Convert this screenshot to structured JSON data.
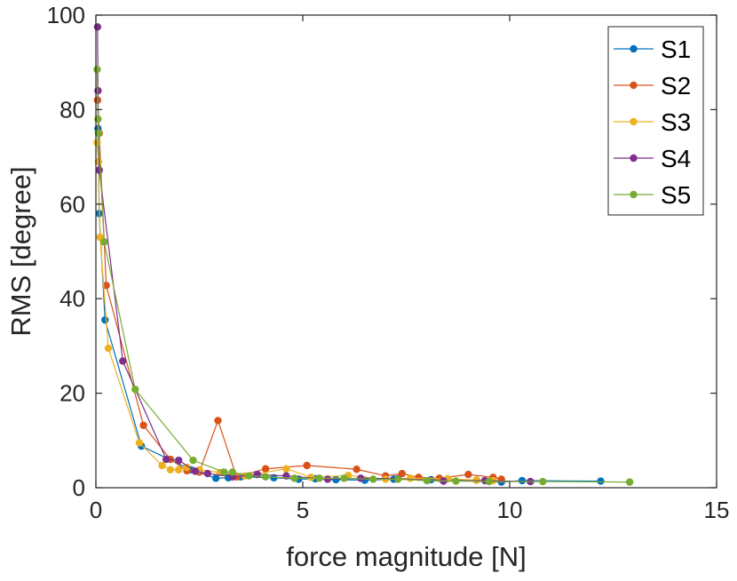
{
  "chart_data": {
    "type": "line",
    "title": "",
    "xlabel": "force magnitude [N]",
    "ylabel": "RMS [degree]",
    "xlim": [
      0,
      15
    ],
    "ylim": [
      0,
      100
    ],
    "xticks": [
      0,
      5,
      10,
      15
    ],
    "yticks": [
      0,
      20,
      40,
      60,
      80,
      100
    ],
    "xtick_labels": [
      "0",
      "5",
      "10",
      "15"
    ],
    "ytick_labels": [
      "0",
      "20",
      "40",
      "60",
      "80",
      "100"
    ],
    "grid": false,
    "legend_position": "top-right",
    "series": [
      {
        "name": "S1",
        "color": "#0072BD",
        "points": [
          [
            0.05,
            76
          ],
          [
            0.08,
            58
          ],
          [
            0.22,
            35.5
          ],
          [
            1.1,
            8.8
          ],
          [
            2.3,
            3.8
          ],
          [
            2.9,
            2.0
          ],
          [
            3.2,
            2.1
          ],
          [
            3.5,
            2.3
          ],
          [
            4.3,
            2.1
          ],
          [
            4.9,
            1.8
          ],
          [
            5.3,
            1.9
          ],
          [
            5.8,
            1.7
          ],
          [
            6.5,
            1.6
          ],
          [
            7.2,
            1.8
          ],
          [
            8.1,
            1.7
          ],
          [
            9.2,
            1.6
          ],
          [
            9.8,
            1.2
          ],
          [
            10.3,
            1.5
          ],
          [
            12.2,
            1.4
          ]
        ]
      },
      {
        "name": "S2",
        "color": "#D95319",
        "points": [
          [
            0.04,
            82
          ],
          [
            0.08,
            75
          ],
          [
            0.25,
            42.8
          ],
          [
            1.15,
            13.2
          ],
          [
            1.8,
            6
          ],
          [
            2.2,
            3.6
          ],
          [
            2.5,
            3.3
          ],
          [
            2.95,
            14.2
          ],
          [
            3.4,
            2.3
          ],
          [
            4.1,
            4
          ],
          [
            5.1,
            4.7
          ],
          [
            6.3,
            3.9
          ],
          [
            7,
            2.5
          ],
          [
            7.4,
            3
          ],
          [
            7.8,
            2.2
          ],
          [
            8.3,
            2
          ],
          [
            9.0,
            2.8
          ],
          [
            9.6,
            2.2
          ],
          [
            9.8,
            1.8
          ]
        ]
      },
      {
        "name": "S3",
        "color": "#EDB120",
        "points": [
          [
            0.03,
            73
          ],
          [
            0.06,
            69
          ],
          [
            0.1,
            53
          ],
          [
            0.3,
            29.5
          ],
          [
            1.05,
            9.5
          ],
          [
            1.6,
            4.7
          ],
          [
            1.8,
            3.8
          ],
          [
            2.0,
            3.8
          ],
          [
            2.2,
            4.3
          ],
          [
            2.5,
            3.8
          ],
          [
            3.0,
            3.2
          ],
          [
            3.6,
            2.5
          ],
          [
            4.6,
            4.0
          ],
          [
            5.2,
            2.2
          ],
          [
            6.1,
            2.6
          ],
          [
            7.0,
            1.8
          ],
          [
            7.6,
            2.0
          ],
          [
            8.5,
            1.9
          ],
          [
            9.2,
            1.6
          ],
          [
            9.6,
            1.5
          ]
        ]
      },
      {
        "name": "S4",
        "color": "#7E2F8E",
        "points": [
          [
            0.04,
            97.5
          ],
          [
            0.05,
            84
          ],
          [
            0.08,
            67.2
          ],
          [
            0.65,
            26.8
          ],
          [
            1.7,
            6
          ],
          [
            2.0,
            5.8
          ],
          [
            2.4,
            3.5
          ],
          [
            2.7,
            3.0
          ],
          [
            3.3,
            2.3
          ],
          [
            3.9,
            2.8
          ],
          [
            4.6,
            2.5
          ],
          [
            5.6,
            1.8
          ],
          [
            6.4,
            2.0
          ],
          [
            7.3,
            1.9
          ],
          [
            8.4,
            1.4
          ],
          [
            9.4,
            1.5
          ],
          [
            10.5,
            1.3
          ]
        ]
      },
      {
        "name": "S5",
        "color": "#77AC30",
        "points": [
          [
            0.03,
            88.5
          ],
          [
            0.05,
            78
          ],
          [
            0.06,
            75
          ],
          [
            0.2,
            52
          ],
          [
            0.95,
            20.8
          ],
          [
            2.35,
            5.8
          ],
          [
            3.1,
            3.3
          ],
          [
            3.3,
            3.3
          ],
          [
            3.7,
            2.5
          ],
          [
            4.1,
            2.3
          ],
          [
            4.8,
            2.0
          ],
          [
            5.4,
            2.0
          ],
          [
            6.0,
            2.0
          ],
          [
            6.7,
            1.8
          ],
          [
            7.3,
            1.8
          ],
          [
            8.0,
            1.5
          ],
          [
            8.7,
            1.4
          ],
          [
            9.5,
            1.3
          ],
          [
            10.8,
            1.3
          ],
          [
            12.9,
            1.2
          ]
        ]
      }
    ]
  }
}
